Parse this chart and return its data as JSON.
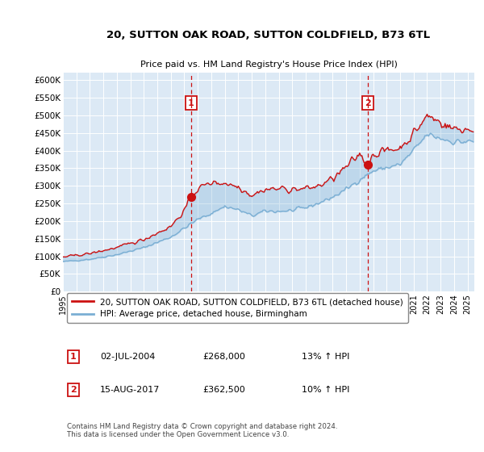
{
  "title": "20, SUTTON OAK ROAD, SUTTON COLDFIELD, B73 6TL",
  "subtitle": "Price paid vs. HM Land Registry's House Price Index (HPI)",
  "ylabel_ticks": [
    "£0",
    "£50K",
    "£100K",
    "£150K",
    "£200K",
    "£250K",
    "£300K",
    "£350K",
    "£400K",
    "£450K",
    "£500K",
    "£550K",
    "£600K"
  ],
  "ytick_values": [
    0,
    50000,
    100000,
    150000,
    200000,
    250000,
    300000,
    350000,
    400000,
    450000,
    500000,
    550000,
    600000
  ],
  "ylim": [
    0,
    620000
  ],
  "sale1_year": 2004.5,
  "sale1_price": 268000,
  "sale1_label": "1",
  "sale2_year": 2017.62,
  "sale2_price": 362500,
  "sale2_label": "2",
  "hpi_color": "#7bafd4",
  "price_color": "#cc1111",
  "marker_box_color": "#cc1111",
  "bg_color": "#dce9f5",
  "grid_color": "#ffffff",
  "legend_line1": "20, SUTTON OAK ROAD, SUTTON COLDFIELD, B73 6TL (detached house)",
  "legend_line2": "HPI: Average price, detached house, Birmingham",
  "table_row1": [
    "1",
    "02-JUL-2004",
    "£268,000",
    "13% ↑ HPI"
  ],
  "table_row2": [
    "2",
    "15-AUG-2017",
    "£362,500",
    "10% ↑ HPI"
  ],
  "footer": "Contains HM Land Registry data © Crown copyright and database right 2024.\nThis data is licensed under the Open Government Licence v3.0.",
  "xmin": 1995,
  "xmax": 2025.5,
  "title_fontsize": 9.5,
  "subtitle_fontsize": 8
}
